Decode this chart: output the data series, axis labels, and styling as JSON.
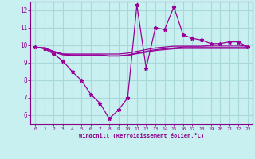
{
  "x": [
    0,
    1,
    2,
    3,
    4,
    5,
    6,
    7,
    8,
    9,
    10,
    11,
    12,
    13,
    14,
    15,
    16,
    17,
    18,
    19,
    20,
    21,
    22,
    23
  ],
  "windchill": [
    9.9,
    9.8,
    9.5,
    9.1,
    8.5,
    8.0,
    7.2,
    6.7,
    5.8,
    6.3,
    7.0,
    12.3,
    8.7,
    11.0,
    10.9,
    12.2,
    10.6,
    10.4,
    10.3,
    10.1,
    10.1,
    10.2,
    10.2,
    9.9
  ],
  "line2": [
    9.9,
    9.85,
    9.65,
    9.5,
    9.5,
    9.5,
    9.5,
    9.5,
    9.5,
    9.5,
    9.55,
    9.65,
    9.75,
    9.85,
    9.9,
    9.95,
    9.95,
    9.95,
    9.95,
    10.0,
    10.0,
    10.0,
    10.0,
    9.95
  ],
  "line3": [
    9.9,
    9.85,
    9.65,
    9.5,
    9.45,
    9.45,
    9.45,
    9.45,
    9.4,
    9.4,
    9.45,
    9.55,
    9.65,
    9.75,
    9.8,
    9.85,
    9.9,
    9.9,
    9.9,
    9.9,
    9.9,
    9.9,
    9.9,
    9.9
  ],
  "line4": [
    9.9,
    9.82,
    9.6,
    9.45,
    9.42,
    9.42,
    9.42,
    9.42,
    9.38,
    9.38,
    9.42,
    9.52,
    9.6,
    9.7,
    9.75,
    9.8,
    9.82,
    9.82,
    9.82,
    9.82,
    9.82,
    9.82,
    9.82,
    9.82
  ],
  "line_color": "#990099",
  "bg_color": "#c8f0f0",
  "grid_color": "#a8d8d8",
  "xlabel": "Windchill (Refroidissement éolien,°C)",
  "ylim": [
    5.5,
    12.5
  ],
  "xlim": [
    -0.5,
    23.5
  ],
  "yticks": [
    6,
    7,
    8,
    9,
    10,
    11,
    12
  ],
  "xticks": [
    0,
    1,
    2,
    3,
    4,
    5,
    6,
    7,
    8,
    9,
    10,
    11,
    12,
    13,
    14,
    15,
    16,
    17,
    18,
    19,
    20,
    21,
    22,
    23
  ],
  "tick_color": "#880088",
  "label_color": "#880088"
}
